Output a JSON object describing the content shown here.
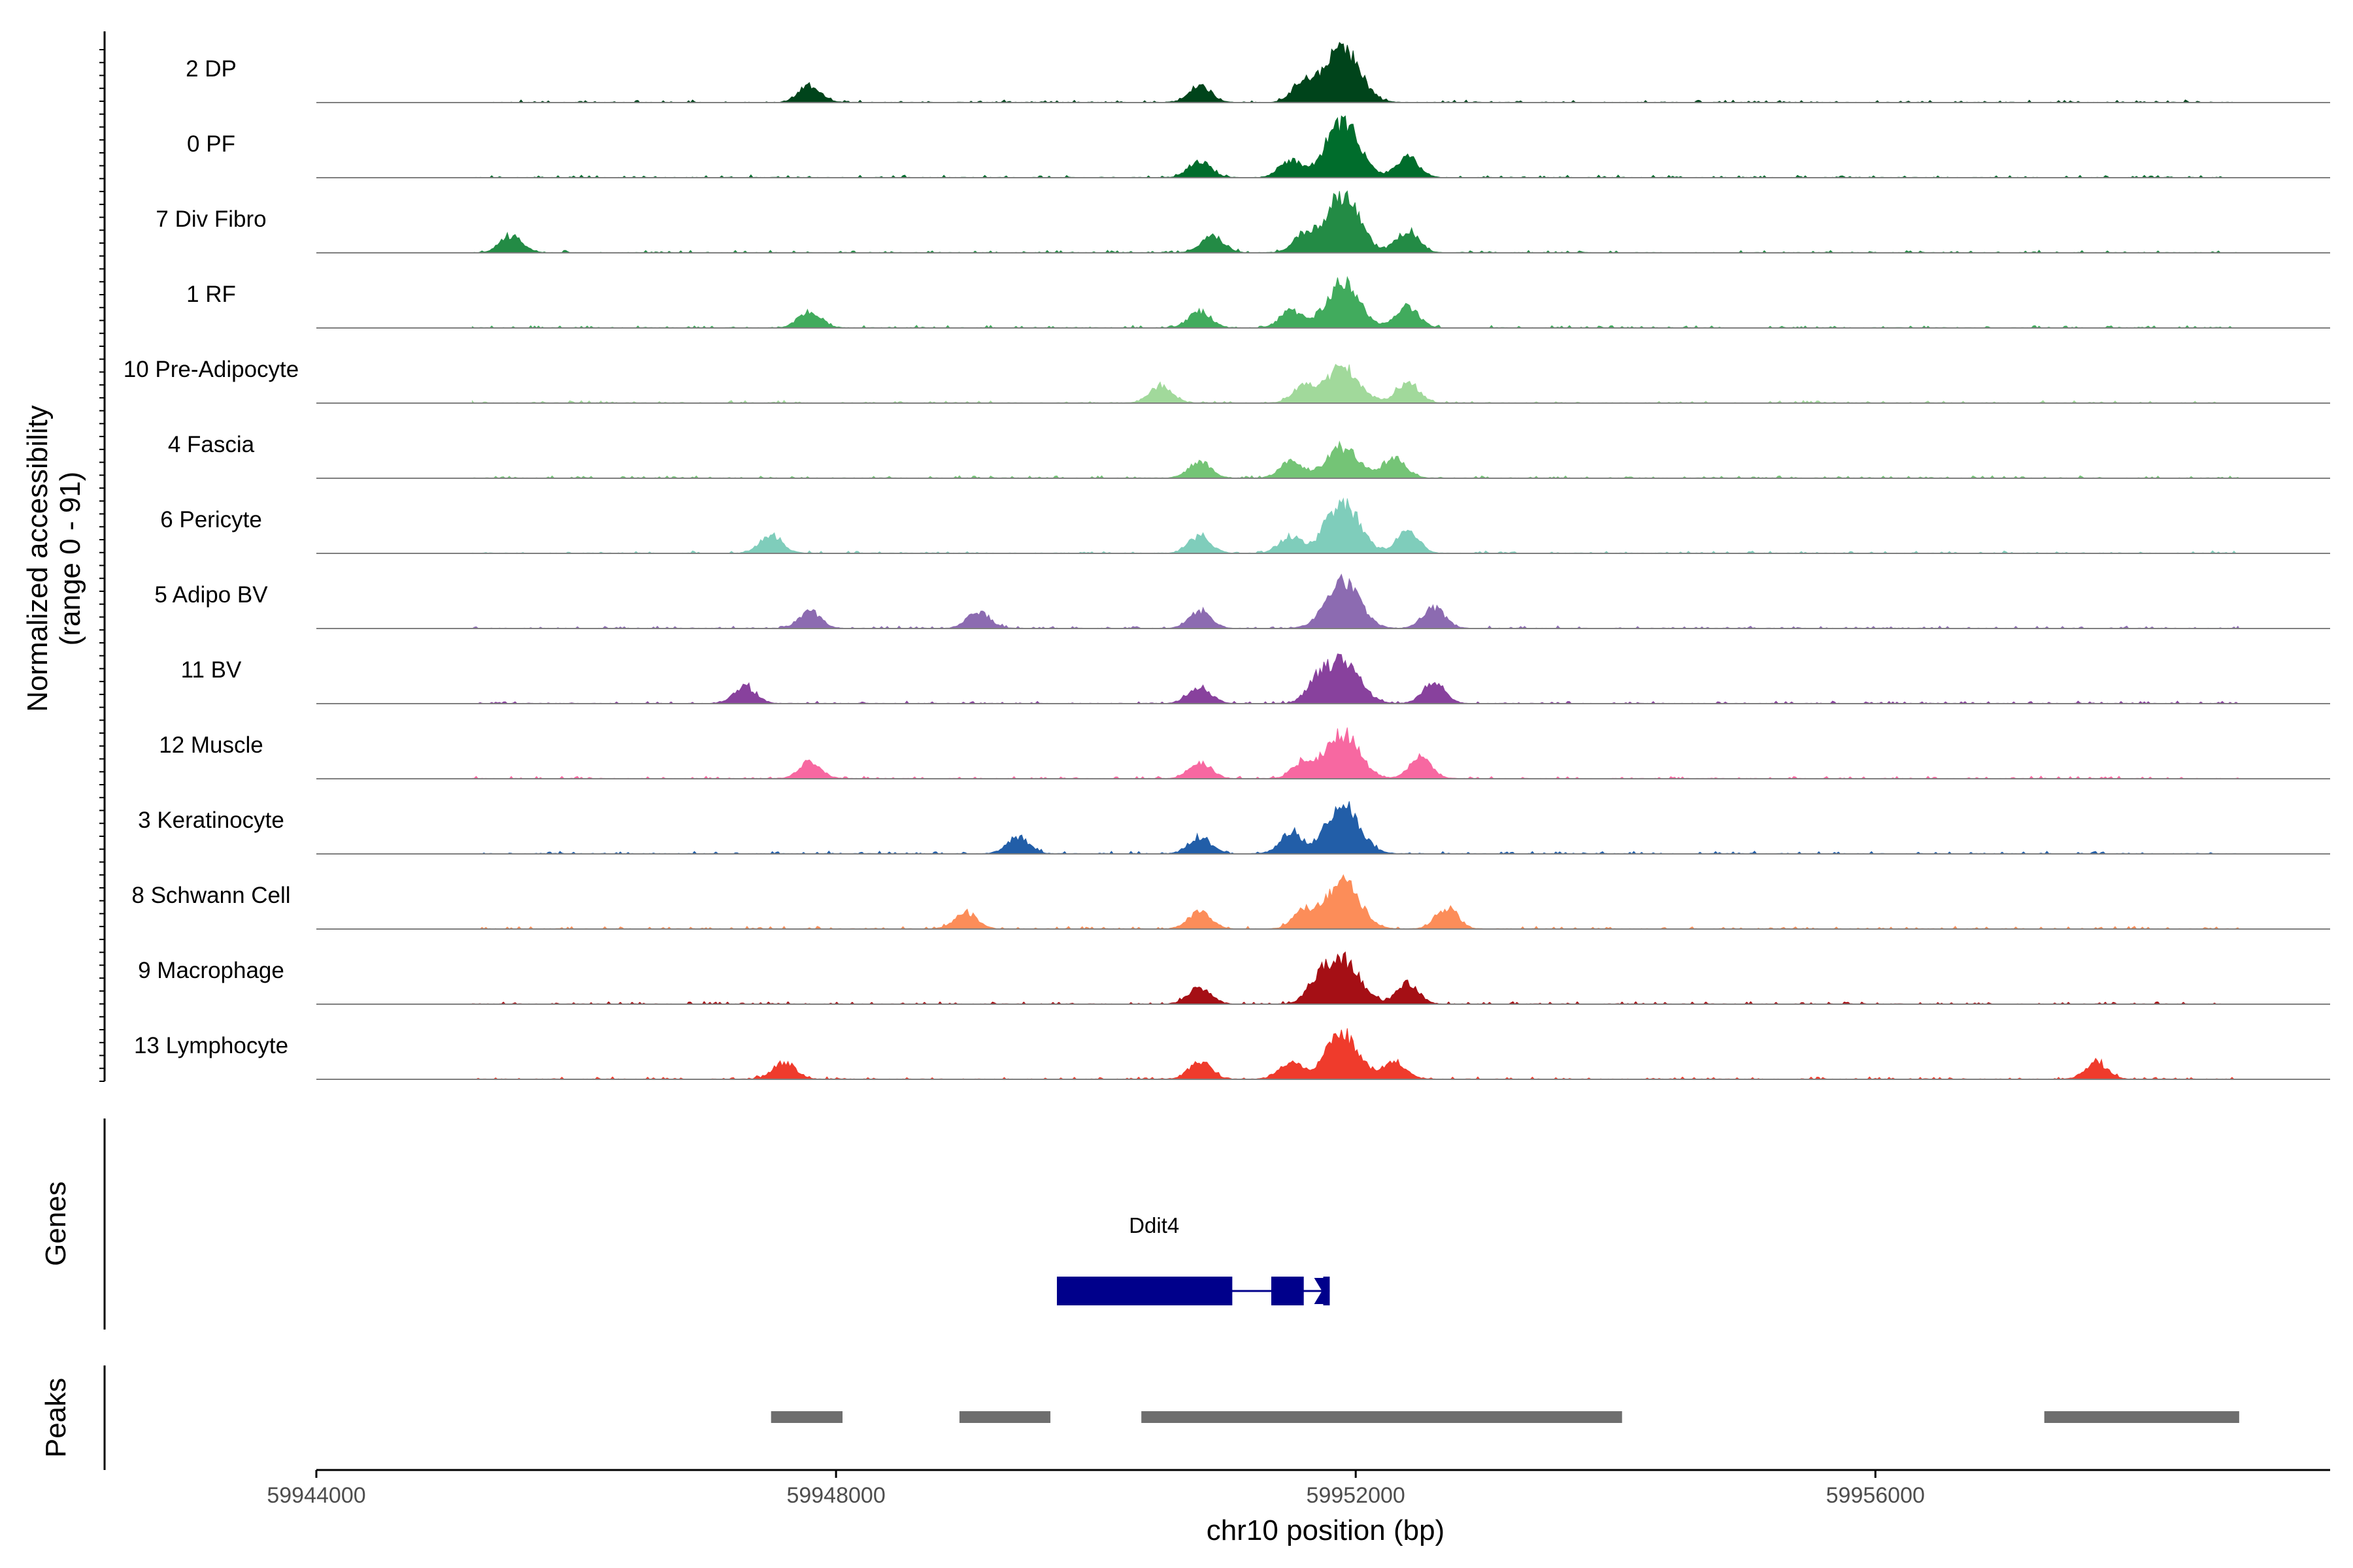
{
  "chart_data": {
    "type": "area",
    "coverage_panel": {
      "ylabel_line1": "Normalized accessibility",
      "ylabel_line2": "(range 0 - 91)",
      "y_range": [
        0,
        91
      ],
      "baseline_color": "#7f7f7f",
      "peak_center": 59951900
    },
    "x": {
      "label": "chr10 position (bp)",
      "range": [
        59944000,
        59959500
      ],
      "data_end": 59958800,
      "ticks": [
        59944000,
        59948000,
        59952000,
        59956000
      ],
      "tick_labels": [
        "59944000",
        "59948000",
        "59952000",
        "59956000"
      ]
    },
    "series": [
      {
        "name": "2 DP",
        "color": "#00441b",
        "secondary_peaks": [
          59947800,
          59950800,
          59951600
        ],
        "scale": 0.95
      },
      {
        "name": "0 PF",
        "color": "#006d2c",
        "secondary_peaks": [
          59950800,
          59951500,
          59952400
        ],
        "scale": 0.95
      },
      {
        "name": "7 Div Fibro",
        "color": "#238b45",
        "secondary_peaks": [
          59945500,
          59950900,
          59951600,
          59952400
        ],
        "scale": 0.95
      },
      {
        "name": "1 RF",
        "color": "#41ab5d",
        "secondary_peaks": [
          59947800,
          59950800,
          59951500,
          59952400
        ],
        "scale": 0.75
      },
      {
        "name": "10 Pre-Adipocyte",
        "color": "#a1d99b",
        "secondary_peaks": [
          59950500,
          59951600,
          59952400
        ],
        "scale": 0.6
      },
      {
        "name": "4 Fascia",
        "color": "#74c476",
        "secondary_peaks": [
          59950800,
          59951500,
          59952300
        ],
        "scale": 0.5
      },
      {
        "name": "6 Pericyte",
        "color": "#7fcdbb",
        "secondary_peaks": [
          59947500,
          59950800,
          59951500,
          59952400
        ],
        "scale": 0.85
      },
      {
        "name": "5 Adipo BV",
        "color": "#8c6bb1",
        "secondary_peaks": [
          59947800,
          59949100,
          59950800,
          59952600
        ],
        "scale": 0.8
      },
      {
        "name": "11 BV",
        "color": "#88419d",
        "secondary_peaks": [
          59947300,
          59950800,
          59951700,
          59952600
        ],
        "scale": 0.7
      },
      {
        "name": "12 Muscle",
        "color": "#f768a1",
        "secondary_peaks": [
          59947800,
          59950800,
          59951600,
          59952500
        ],
        "scale": 0.75
      },
      {
        "name": "3 Keratinocyte",
        "color": "#225ea8",
        "secondary_peaks": [
          59949400,
          59950800,
          59951500
        ],
        "scale": 0.8
      },
      {
        "name": "8 Schwann Cell",
        "color": "#fc8d59",
        "secondary_peaks": [
          59949000,
          59950800,
          59951600,
          59952700
        ],
        "scale": 0.8
      },
      {
        "name": "9 Macrophage",
        "color": "#a50f15",
        "secondary_peaks": [
          59950800,
          59951700,
          59952400
        ],
        "scale": 0.75
      },
      {
        "name": "13 Lymphocyte",
        "color": "#ef3b2c",
        "secondary_peaks": [
          59947600,
          59950800,
          59951500,
          59952300,
          59957700
        ],
        "scale": 0.75
      }
    ],
    "genes": {
      "label": "Genes",
      "items": [
        {
          "name": "Ddit4",
          "start": 59949700,
          "end": 59951800,
          "color": "#00008b",
          "exons": [
            [
              59949700,
              59951050
            ],
            [
              59951350,
              59951600
            ],
            [
              59951750,
              59951800
            ]
          ],
          "notch_at": 59951680
        }
      ]
    },
    "peaks": {
      "label": "Peaks",
      "color": "#6e6e6e",
      "regions": [
        [
          59947500,
          59948050
        ],
        [
          59948950,
          59949650
        ],
        [
          59950350,
          59954050
        ],
        [
          59957300,
          59958800
        ]
      ]
    }
  }
}
